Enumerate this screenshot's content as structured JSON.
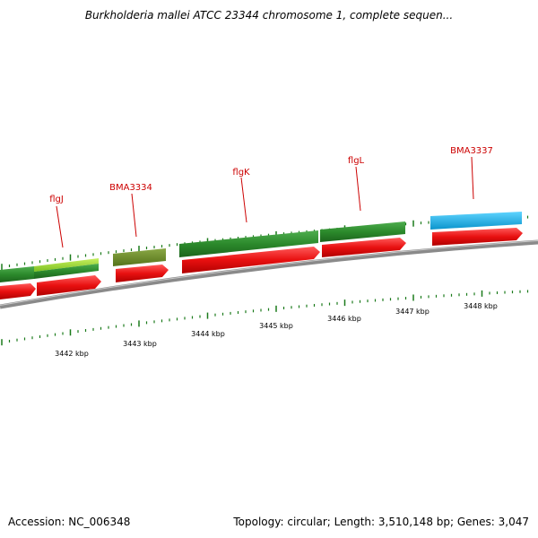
{
  "title": "Burkholderia mallei ATCC 23344 chromosome 1, complete sequen...",
  "footer": {
    "accession": "Accession: NC_006348",
    "stats": "Topology: circular; Length: 3,510,148 bp; Genes: 3,047"
  },
  "colors": {
    "backbone": "#8a8a8a",
    "ticks": "#1a7a1a",
    "label": "#cc0000",
    "gene_red": "#e81010",
    "gene_green": "#2c8a2c",
    "gene_lime": "#9bd42a",
    "gene_olive": "#6b8e23",
    "gene_blue": "#1ab0e8"
  },
  "kbp_labels": [
    "3442 kbp",
    "3443 kbp",
    "3444 kbp",
    "3445 kbp",
    "3446 kbp",
    "3447 kbp",
    "3448 kbp"
  ],
  "gene_labels": [
    "flgJ",
    "BMA3334",
    "flgK",
    "flgL",
    "BMA3337"
  ]
}
